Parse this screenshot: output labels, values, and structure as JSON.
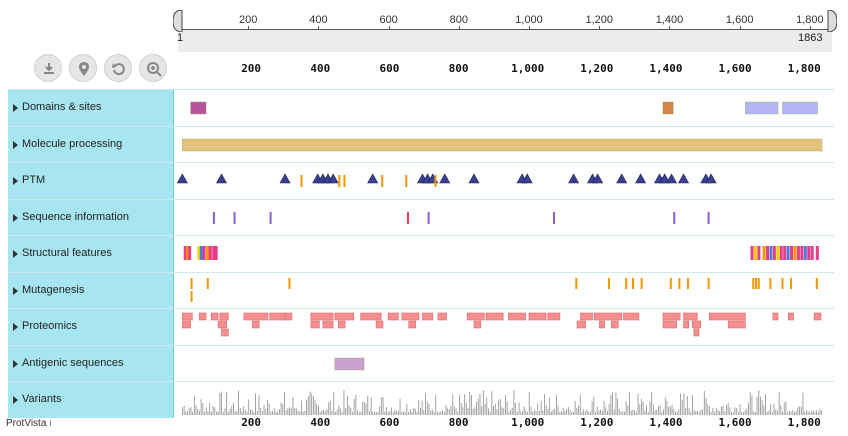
{
  "app": {
    "name": "ProtVista",
    "info_icon": "i"
  },
  "navigation": {
    "start": "1",
    "end": "1863",
    "tick_labels": [
      "200",
      "400",
      "600",
      "800",
      "1,000",
      "1,200",
      "1,400",
      "1,600",
      "1,800"
    ]
  },
  "toolbar": [
    {
      "name": "download-button",
      "icon": "download-icon"
    },
    {
      "name": "highlight-button",
      "icon": "location-pin-icon"
    },
    {
      "name": "reset-button",
      "icon": "reset-icon"
    },
    {
      "name": "zoom-button",
      "icon": "zoom-in-icon"
    }
  ],
  "axis": {
    "labels": [
      "200",
      "400",
      "600",
      "800",
      "1,000",
      "1,200",
      "1,400",
      "1,600",
      "1,800"
    ]
  },
  "sequence_length": 1863,
  "tracks": [
    {
      "label": "Domains & sites",
      "features": [
        {
          "type": "rect",
          "start": 25,
          "end": 70,
          "color": "#b8539a",
          "row": 0
        },
        {
          "type": "rect",
          "start": 1400,
          "end": 1430,
          "color": "#d4854a",
          "row": 0
        },
        {
          "type": "rect",
          "start": 1640,
          "end": 1735,
          "color": "#b5b5f5",
          "row": 0
        },
        {
          "type": "rect",
          "start": 1748,
          "end": 1850,
          "color": "#b5b5f5",
          "row": 0
        }
      ]
    },
    {
      "label": "Molecule processing",
      "features": [
        {
          "type": "rect",
          "start": 1,
          "end": 1863,
          "color": "#e6c27f",
          "row": 0
        }
      ]
    },
    {
      "label": "PTM",
      "features": [
        {
          "type": "tri",
          "pos": 1
        },
        {
          "type": "tri",
          "pos": 115
        },
        {
          "type": "tri",
          "pos": 300
        },
        {
          "type": "tri",
          "pos": 395
        },
        {
          "type": "tri",
          "pos": 410
        },
        {
          "type": "tri",
          "pos": 425
        },
        {
          "type": "tri",
          "pos": 440
        },
        {
          "type": "tri",
          "pos": 555
        },
        {
          "type": "tri",
          "pos": 700
        },
        {
          "type": "tri",
          "pos": 715
        },
        {
          "type": "tri",
          "pos": 730
        },
        {
          "type": "tri",
          "pos": 765
        },
        {
          "type": "tri",
          "pos": 850
        },
        {
          "type": "tri",
          "pos": 990
        },
        {
          "type": "tri",
          "pos": 1005
        },
        {
          "type": "tri",
          "pos": 1140
        },
        {
          "type": "tri",
          "pos": 1195
        },
        {
          "type": "tri",
          "pos": 1210
        },
        {
          "type": "tri",
          "pos": 1280
        },
        {
          "type": "tri",
          "pos": 1335
        },
        {
          "type": "tri",
          "pos": 1390
        },
        {
          "type": "tri",
          "pos": 1405
        },
        {
          "type": "tri",
          "pos": 1425
        },
        {
          "type": "tri",
          "pos": 1460
        },
        {
          "type": "tri",
          "pos": 1525
        },
        {
          "type": "tri",
          "pos": 1540
        },
        {
          "type": "bar",
          "pos": 345,
          "color": "#f39800"
        },
        {
          "type": "bar",
          "pos": 455,
          "color": "#f39800"
        },
        {
          "type": "bar",
          "pos": 470,
          "color": "#f39800"
        },
        {
          "type": "bar",
          "pos": 580,
          "color": "#f39800"
        },
        {
          "type": "bar",
          "pos": 650,
          "color": "#f39800"
        },
        {
          "type": "bar",
          "pos": 735,
          "color": "#f39800"
        }
      ]
    },
    {
      "label": "Sequence information",
      "features": [
        {
          "type": "bar",
          "pos": 90,
          "color": "#8a5ed6"
        },
        {
          "type": "bar",
          "pos": 150,
          "color": "#8a5ed6"
        },
        {
          "type": "bar",
          "pos": 255,
          "color": "#8a5ed6"
        },
        {
          "type": "bar",
          "pos": 655,
          "color": "#e83c5a"
        },
        {
          "type": "bar",
          "pos": 715,
          "color": "#8a5ed6"
        },
        {
          "type": "bar",
          "pos": 1080,
          "color": "#8a5ed6"
        },
        {
          "type": "bar",
          "pos": 1430,
          "color": "#8a5ed6"
        },
        {
          "type": "bar",
          "pos": 1530,
          "color": "#8a5ed6"
        }
      ]
    },
    {
      "label": "Structural features",
      "features": [
        {
          "type": "bar",
          "pos": 5,
          "color": "#e83c8a"
        },
        {
          "type": "bar",
          "pos": 12,
          "color": "#f39800"
        },
        {
          "type": "bar",
          "pos": 18,
          "color": "#e83c8a"
        },
        {
          "type": "bar",
          "pos": 45,
          "color": "#f3d200"
        },
        {
          "type": "bar",
          "pos": 52,
          "color": "#4a7be0"
        },
        {
          "type": "bar",
          "pos": 60,
          "color": "#e83c8a"
        },
        {
          "type": "bar",
          "pos": 70,
          "color": "#f39800"
        },
        {
          "type": "bar",
          "pos": 78,
          "color": "#e83c8a"
        },
        {
          "type": "bar",
          "pos": 88,
          "color": "#e83c8a"
        },
        {
          "type": "bar",
          "pos": 95,
          "color": "#e83c8a"
        },
        {
          "type": "bar",
          "pos": 1655,
          "color": "#e83c8a"
        },
        {
          "type": "bar",
          "pos": 1665,
          "color": "#f3d200"
        },
        {
          "type": "bar",
          "pos": 1675,
          "color": "#e83c8a"
        },
        {
          "type": "bar",
          "pos": 1690,
          "color": "#f39800"
        },
        {
          "type": "bar",
          "pos": 1700,
          "color": "#e83c8a"
        },
        {
          "type": "bar",
          "pos": 1710,
          "color": "#4a7be0"
        },
        {
          "type": "bar",
          "pos": 1720,
          "color": "#e83c8a"
        },
        {
          "type": "bar",
          "pos": 1730,
          "color": "#f3d200"
        },
        {
          "type": "bar",
          "pos": 1740,
          "color": "#e83c8a"
        },
        {
          "type": "bar",
          "pos": 1750,
          "color": "#e83c8a"
        },
        {
          "type": "bar",
          "pos": 1760,
          "color": "#4a7be0"
        },
        {
          "type": "bar",
          "pos": 1770,
          "color": "#e83c8a"
        },
        {
          "type": "bar",
          "pos": 1780,
          "color": "#f39800"
        },
        {
          "type": "bar",
          "pos": 1790,
          "color": "#e83c8a"
        },
        {
          "type": "bar",
          "pos": 1800,
          "color": "#e83c8a"
        },
        {
          "type": "bar",
          "pos": 1810,
          "color": "#4a7be0"
        },
        {
          "type": "bar",
          "pos": 1820,
          "color": "#e83c8a"
        },
        {
          "type": "bar",
          "pos": 1830,
          "color": "#e83c8a"
        },
        {
          "type": "bar",
          "pos": 1845,
          "color": "#e83c8a"
        }
      ]
    },
    {
      "label": "Mutagenesis",
      "features": [
        {
          "type": "bar",
          "pos": 25,
          "color": "#f39800",
          "row": 0
        },
        {
          "type": "bar",
          "pos": 25,
          "color": "#f39800",
          "row": 1
        },
        {
          "type": "bar",
          "pos": 72,
          "color": "#f39800",
          "row": 0
        },
        {
          "type": "bar",
          "pos": 310,
          "color": "#f39800",
          "row": 0
        },
        {
          "type": "bar",
          "pos": 1145,
          "color": "#f39800",
          "row": 0
        },
        {
          "type": "bar",
          "pos": 1240,
          "color": "#f39800",
          "row": 0
        },
        {
          "type": "bar",
          "pos": 1290,
          "color": "#f39800",
          "row": 0
        },
        {
          "type": "bar",
          "pos": 1310,
          "color": "#f39800",
          "row": 0
        },
        {
          "type": "bar",
          "pos": 1335,
          "color": "#f39800",
          "row": 0
        },
        {
          "type": "bar",
          "pos": 1420,
          "color": "#f39800",
          "row": 0
        },
        {
          "type": "bar",
          "pos": 1445,
          "color": "#f39800",
          "row": 0
        },
        {
          "type": "bar",
          "pos": 1470,
          "color": "#f39800",
          "row": 0
        },
        {
          "type": "bar",
          "pos": 1530,
          "color": "#f39800",
          "row": 0
        },
        {
          "type": "bar",
          "pos": 1660,
          "color": "#f39800",
          "row": 0
        },
        {
          "type": "bar",
          "pos": 1668,
          "color": "#f39800",
          "row": 0
        },
        {
          "type": "bar",
          "pos": 1676,
          "color": "#f39800",
          "row": 0
        },
        {
          "type": "bar",
          "pos": 1710,
          "color": "#f39800",
          "row": 0
        },
        {
          "type": "bar",
          "pos": 1745,
          "color": "#f39800",
          "row": 0
        },
        {
          "type": "bar",
          "pos": 1770,
          "color": "#f39800",
          "row": 0
        },
        {
          "type": "bar",
          "pos": 1845,
          "color": "#f39800",
          "row": 0
        }
      ]
    },
    {
      "label": "Proteomics",
      "features": [
        {
          "type": "rect",
          "start": 1,
          "end": 30,
          "color": "#f58e8e",
          "row": 0
        },
        {
          "type": "rect",
          "start": 50,
          "end": 70,
          "color": "#f58e8e",
          "row": 0
        },
        {
          "type": "rect",
          "start": 85,
          "end": 105,
          "color": "#f58e8e",
          "row": 0
        },
        {
          "type": "rect",
          "start": 110,
          "end": 135,
          "color": "#f58e8e",
          "row": 0
        },
        {
          "type": "rect",
          "start": 180,
          "end": 250,
          "color": "#f58e8e",
          "row": 0
        },
        {
          "type": "rect",
          "start": 255,
          "end": 300,
          "color": "#f58e8e",
          "row": 0
        },
        {
          "type": "rect",
          "start": 300,
          "end": 320,
          "color": "#f58e8e",
          "row": 0
        },
        {
          "type": "rect",
          "start": 375,
          "end": 440,
          "color": "#f58e8e",
          "row": 0
        },
        {
          "type": "rect",
          "start": 445,
          "end": 500,
          "color": "#f58e8e",
          "row": 0
        },
        {
          "type": "rect",
          "start": 520,
          "end": 580,
          "color": "#f58e8e",
          "row": 0
        },
        {
          "type": "rect",
          "start": 600,
          "end": 630,
          "color": "#f58e8e",
          "row": 0
        },
        {
          "type": "rect",
          "start": 640,
          "end": 690,
          "color": "#f58e8e",
          "row": 0
        },
        {
          "type": "rect",
          "start": 700,
          "end": 730,
          "color": "#f58e8e",
          "row": 0
        },
        {
          "type": "rect",
          "start": 745,
          "end": 770,
          "color": "#f58e8e",
          "row": 0
        },
        {
          "type": "rect",
          "start": 830,
          "end": 880,
          "color": "#f58e8e",
          "row": 0
        },
        {
          "type": "rect",
          "start": 885,
          "end": 935,
          "color": "#f58e8e",
          "row": 0
        },
        {
          "type": "rect",
          "start": 950,
          "end": 1000,
          "color": "#f58e8e",
          "row": 0
        },
        {
          "type": "rect",
          "start": 1010,
          "end": 1060,
          "color": "#f58e8e",
          "row": 0
        },
        {
          "type": "rect",
          "start": 1065,
          "end": 1100,
          "color": "#f58e8e",
          "row": 0
        },
        {
          "type": "rect",
          "start": 1160,
          "end": 1195,
          "color": "#f58e8e",
          "row": 0
        },
        {
          "type": "rect",
          "start": 1200,
          "end": 1280,
          "color": "#f58e8e",
          "row": 0
        },
        {
          "type": "rect",
          "start": 1285,
          "end": 1330,
          "color": "#f58e8e",
          "row": 0
        },
        {
          "type": "rect",
          "start": 1400,
          "end": 1450,
          "color": "#f58e8e",
          "row": 0
        },
        {
          "type": "rect",
          "start": 1460,
          "end": 1500,
          "color": "#f58e8e",
          "row": 0
        },
        {
          "type": "rect",
          "start": 1535,
          "end": 1640,
          "color": "#f58e8e",
          "row": 0
        },
        {
          "type": "rect",
          "start": 1720,
          "end": 1735,
          "color": "#f58e8e",
          "row": 0
        },
        {
          "type": "rect",
          "start": 1765,
          "end": 1780,
          "color": "#f58e8e",
          "row": 0
        },
        {
          "type": "rect",
          "start": 1840,
          "end": 1860,
          "color": "#f58e8e",
          "row": 0
        },
        {
          "type": "rect",
          "start": 1,
          "end": 25,
          "color": "#f58e8e",
          "row": 1
        },
        {
          "type": "rect",
          "start": 105,
          "end": 130,
          "color": "#f58e8e",
          "row": 1
        },
        {
          "type": "rect",
          "start": 205,
          "end": 225,
          "color": "#f58e8e",
          "row": 1
        },
        {
          "type": "rect",
          "start": 375,
          "end": 400,
          "color": "#f58e8e",
          "row": 1
        },
        {
          "type": "rect",
          "start": 410,
          "end": 440,
          "color": "#f58e8e",
          "row": 1
        },
        {
          "type": "rect",
          "start": 455,
          "end": 475,
          "color": "#f58e8e",
          "row": 1
        },
        {
          "type": "rect",
          "start": 565,
          "end": 585,
          "color": "#f58e8e",
          "row": 1
        },
        {
          "type": "rect",
          "start": 660,
          "end": 680,
          "color": "#f58e8e",
          "row": 1
        },
        {
          "type": "rect",
          "start": 850,
          "end": 870,
          "color": "#f58e8e",
          "row": 1
        },
        {
          "type": "rect",
          "start": 1150,
          "end": 1175,
          "color": "#f58e8e",
          "row": 1
        },
        {
          "type": "rect",
          "start": 1215,
          "end": 1230,
          "color": "#f58e8e",
          "row": 1
        },
        {
          "type": "rect",
          "start": 1250,
          "end": 1270,
          "color": "#f58e8e",
          "row": 1
        },
        {
          "type": "rect",
          "start": 1400,
          "end": 1440,
          "color": "#f58e8e",
          "row": 1
        },
        {
          "type": "rect",
          "start": 1460,
          "end": 1475,
          "color": "#f58e8e",
          "row": 1
        },
        {
          "type": "rect",
          "start": 1485,
          "end": 1510,
          "color": "#f58e8e",
          "row": 1
        },
        {
          "type": "rect",
          "start": 1590,
          "end": 1640,
          "color": "#f58e8e",
          "row": 1
        },
        {
          "type": "rect",
          "start": 115,
          "end": 135,
          "color": "#f58e8e",
          "row": 2
        },
        {
          "type": "rect",
          "start": 1490,
          "end": 1505,
          "color": "#f58e8e",
          "row": 2
        }
      ]
    },
    {
      "label": "Antigenic sequences",
      "features": [
        {
          "type": "rect",
          "start": 445,
          "end": 530,
          "color": "#c9a0cf",
          "row": 0
        }
      ]
    },
    {
      "label": "Variants",
      "features": [
        {
          "type": "variants"
        }
      ]
    }
  ]
}
